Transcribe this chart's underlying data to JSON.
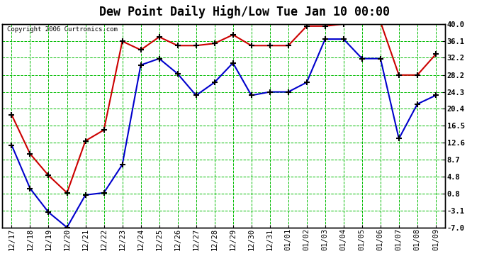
{
  "title": "Dew Point Daily High/Low Tue Jan 10 00:00",
  "copyright": "Copyright 2006 Curtronics.com",
  "x_labels": [
    "12/17",
    "12/18",
    "12/19",
    "12/20",
    "12/21",
    "12/22",
    "12/23",
    "12/24",
    "12/25",
    "12/26",
    "12/27",
    "12/28",
    "12/29",
    "12/30",
    "12/31",
    "01/01",
    "01/02",
    "01/03",
    "01/04",
    "01/05",
    "01/06",
    "01/07",
    "01/08",
    "01/09"
  ],
  "high_values": [
    19.0,
    10.0,
    5.0,
    1.0,
    13.0,
    15.5,
    36.0,
    34.0,
    37.0,
    35.0,
    35.0,
    35.5,
    37.5,
    35.0,
    35.0,
    35.0,
    39.5,
    39.5,
    40.0,
    40.5,
    40.5,
    28.2,
    28.2,
    33.0
  ],
  "low_values": [
    12.0,
    2.0,
    -3.5,
    -7.0,
    0.5,
    1.0,
    7.5,
    30.5,
    32.0,
    28.5,
    23.5,
    26.5,
    31.0,
    23.5,
    24.3,
    24.3,
    26.5,
    36.5,
    36.5,
    32.0,
    32.0,
    13.5,
    21.5,
    23.5
  ],
  "high_color": "#cc0000",
  "low_color": "#0000cc",
  "bg_color": "#ffffff",
  "grid_color": "#00bb00",
  "y_ticks": [
    40.0,
    36.1,
    32.2,
    28.2,
    24.3,
    20.4,
    16.5,
    12.6,
    8.7,
    4.8,
    0.8,
    -3.1,
    -7.0
  ],
  "ylim": [
    -7.0,
    40.0
  ],
  "title_fontsize": 12,
  "axis_fontsize": 7.5
}
